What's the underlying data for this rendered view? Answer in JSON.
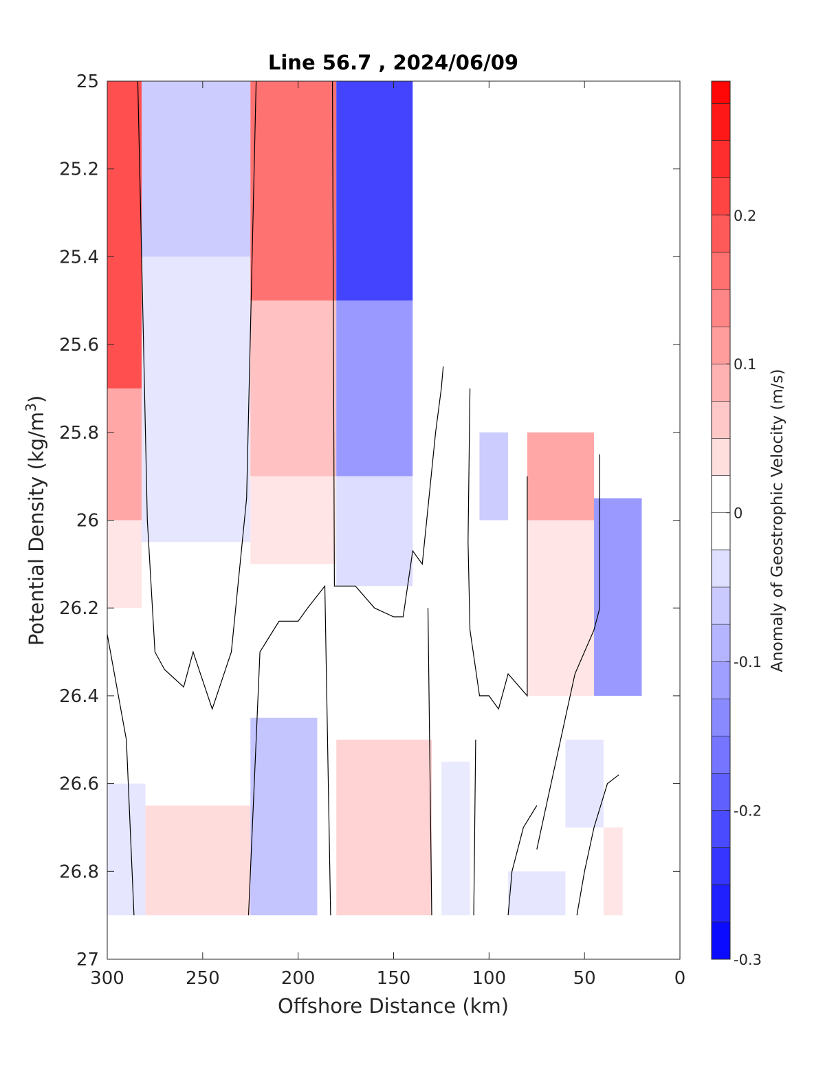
{
  "chart_data": {
    "type": "contourf",
    "title": "Line 56.7 , 2024/06/09",
    "xlabel": "Offshore Distance (km)",
    "ylabel_main": "Potential Density (kg/m",
    "ylabel_sup": "3",
    "ylabel_close": ")",
    "colorbar_label": "Anomaly of Geostrophic Velocity (m/s)",
    "x_reversed": true,
    "y_reversed": true,
    "xlim": [
      0,
      300
    ],
    "ylim": [
      25,
      27
    ],
    "xticks": [
      300,
      250,
      200,
      150,
      100,
      50,
      0
    ],
    "xtick_labels": [
      "300",
      "250",
      "200",
      "150",
      "100",
      "50",
      "0"
    ],
    "yticks": [
      25,
      25.2,
      25.4,
      25.6,
      25.8,
      26,
      26.2,
      26.4,
      26.6,
      26.8,
      27
    ],
    "ytick_labels": [
      "25",
      "25.2",
      "25.4",
      "25.6",
      "25.8",
      "26",
      "26.2",
      "26.4",
      "26.6",
      "26.8",
      "27"
    ],
    "colorbar_range": [
      -0.3,
      0.29
    ],
    "colorbar_levels": [
      -0.3,
      -0.275,
      -0.25,
      -0.225,
      -0.2,
      -0.175,
      -0.15,
      -0.125,
      -0.1,
      -0.075,
      -0.05,
      -0.025,
      0,
      0.025,
      0.05,
      0.075,
      0.1,
      0.125,
      0.15,
      0.175,
      0.2,
      0.225,
      0.25,
      0.275,
      0.29
    ],
    "colorbar_ticks": [
      -0.3,
      -0.2,
      -0.1,
      0,
      0.1,
      0.2
    ],
    "colorbar_tick_labels": [
      "-0.3",
      "-0.2",
      "-0.1",
      "0",
      "0.1",
      "0.2"
    ],
    "colormap": "blue-white-red",
    "negative_color": "#0000ff",
    "positive_color": "#ff0000",
    "data_extent": {
      "x_min": 7,
      "x_max": 300,
      "y_min": 25,
      "y_max": 26.9
    },
    "cells": [
      {
        "x": [
          282,
          300
        ],
        "y": [
          25,
          25.7
        ],
        "v": 0.2
      },
      {
        "x": [
          282,
          300
        ],
        "y": [
          25.7,
          26.0
        ],
        "v": 0.1
      },
      {
        "x": [
          282,
          300
        ],
        "y": [
          26.0,
          26.2
        ],
        "v": 0.03
      },
      {
        "x": [
          225,
          282
        ],
        "y": [
          25,
          25.4
        ],
        "v": -0.06
      },
      {
        "x": [
          225,
          282
        ],
        "y": [
          25.4,
          26.05
        ],
        "v": -0.03
      },
      {
        "x": [
          180,
          225
        ],
        "y": [
          25,
          25.5
        ],
        "v": 0.16
      },
      {
        "x": [
          180,
          225
        ],
        "y": [
          25.5,
          25.9
        ],
        "v": 0.07
      },
      {
        "x": [
          180,
          225
        ],
        "y": [
          25.9,
          26.1
        ],
        "v": 0.03
      },
      {
        "x": [
          140,
          180
        ],
        "y": [
          25,
          25.5
        ],
        "v": -0.22
      },
      {
        "x": [
          140,
          180
        ],
        "y": [
          25.5,
          25.9
        ],
        "v": -0.12
      },
      {
        "x": [
          140,
          180
        ],
        "y": [
          25.9,
          26.15
        ],
        "v": -0.04
      },
      {
        "x": [
          90,
          105
        ],
        "y": [
          25.8,
          26.0
        ],
        "v": -0.06
      },
      {
        "x": [
          45,
          80
        ],
        "y": [
          25.8,
          26.0
        ],
        "v": 0.1
      },
      {
        "x": [
          45,
          80
        ],
        "y": [
          26.0,
          26.4
        ],
        "v": 0.03
      },
      {
        "x": [
          20,
          45
        ],
        "y": [
          25.95,
          26.4
        ],
        "v": -0.12
      },
      {
        "x": [
          280,
          300
        ],
        "y": [
          26.6,
          26.9
        ],
        "v": -0.03
      },
      {
        "x": [
          225,
          280
        ],
        "y": [
          26.65,
          26.9
        ],
        "v": 0.04
      },
      {
        "x": [
          190,
          225
        ],
        "y": [
          26.45,
          26.9
        ],
        "v": -0.07
      },
      {
        "x": [
          130,
          180
        ],
        "y": [
          26.5,
          26.9
        ],
        "v": 0.05
      },
      {
        "x": [
          110,
          125
        ],
        "y": [
          26.55,
          26.9
        ],
        "v": -0.025
      },
      {
        "x": [
          60,
          90
        ],
        "y": [
          26.8,
          26.9
        ],
        "v": -0.03
      },
      {
        "x": [
          40,
          60
        ],
        "y": [
          26.5,
          26.7
        ],
        "v": -0.03
      },
      {
        "x": [
          30,
          40
        ],
        "y": [
          26.7,
          26.9
        ],
        "v": 0.03
      }
    ],
    "zero_contours": [
      [
        [
          284,
          25
        ],
        [
          281,
          25.6
        ],
        [
          279,
          26.0
        ],
        [
          275,
          26.3
        ],
        [
          270,
          26.34
        ],
        [
          260,
          26.38
        ],
        [
          255,
          26.3
        ],
        [
          245,
          26.43
        ],
        [
          235,
          26.3
        ],
        [
          227,
          25.95
        ],
        [
          222,
          25
        ]
      ],
      [
        [
          182,
          25
        ],
        [
          181,
          26.15
        ],
        [
          170,
          26.15
        ],
        [
          160,
          26.2
        ],
        [
          150,
          26.22
        ],
        [
          145,
          26.22
        ],
        [
          140,
          26.07
        ],
        [
          135,
          26.1
        ],
        [
          128,
          25.8
        ],
        [
          125,
          25.7
        ],
        [
          124,
          25.65
        ]
      ],
      [
        [
          110,
          25.7
        ],
        [
          111,
          26.05
        ],
        [
          110,
          26.25
        ],
        [
          105,
          26.4
        ],
        [
          100,
          26.4
        ],
        [
          95,
          26.43
        ],
        [
          90,
          26.35
        ],
        [
          80,
          26.4
        ],
        [
          80,
          25.9
        ]
      ],
      [
        [
          42,
          25.85
        ],
        [
          42,
          26.2
        ],
        [
          45,
          26.25
        ],
        [
          55,
          26.35
        ],
        [
          60,
          26.45
        ],
        [
          65,
          26.55
        ],
        [
          70,
          26.65
        ],
        [
          75,
          26.75
        ]
      ],
      [
        [
          300,
          26.26
        ],
        [
          290,
          26.5
        ],
        [
          286,
          26.9
        ]
      ],
      [
        [
          226,
          26.9
        ],
        [
          222,
          26.5
        ],
        [
          220,
          26.3
        ],
        [
          210,
          26.23
        ],
        [
          200,
          26.23
        ],
        [
          195,
          26.2
        ],
        [
          186,
          26.15
        ],
        [
          183,
          26.9
        ]
      ],
      [
        [
          130,
          26.9
        ],
        [
          132,
          26.2
        ]
      ],
      [
        [
          108,
          26.9
        ],
        [
          107,
          26.5
        ]
      ],
      [
        [
          90,
          26.9
        ],
        [
          88,
          26.8
        ],
        [
          82,
          26.7
        ],
        [
          75,
          26.65
        ]
      ],
      [
        [
          54,
          26.9
        ],
        [
          50,
          26.8
        ],
        [
          45,
          26.7
        ],
        [
          38,
          26.6
        ],
        [
          32,
          26.58
        ]
      ]
    ]
  }
}
